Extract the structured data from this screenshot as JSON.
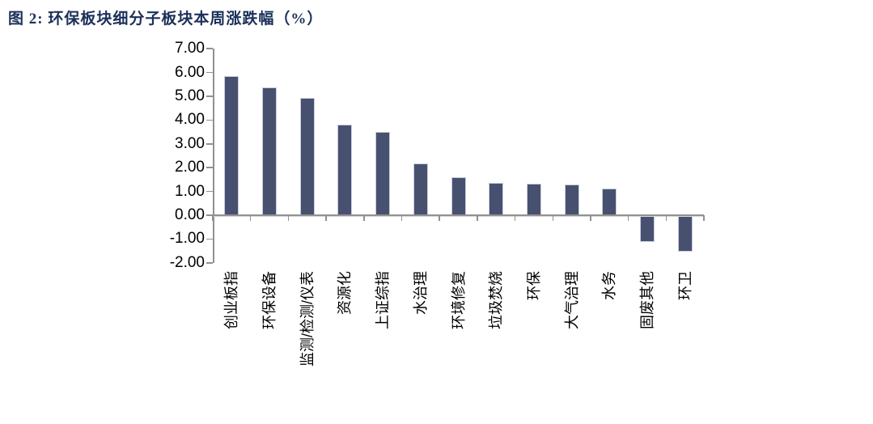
{
  "figure": {
    "title": "图 2: 环保板块细分子板块本周涨跌幅（%）"
  },
  "chart_data": {
    "type": "bar",
    "title": "环保板块细分子板块本周涨跌幅（%）",
    "categories": [
      "创业板指",
      "环保设备",
      "监测/检测/仪表",
      "资源化",
      "上证综指",
      "水治理",
      "环境修复",
      "垃圾焚烧",
      "环保",
      "大气治理",
      "水务",
      "固废其他",
      "环卫"
    ],
    "values": [
      5.85,
      5.38,
      4.93,
      3.81,
      3.52,
      2.16,
      1.6,
      1.37,
      1.34,
      1.3,
      1.13,
      -1.1,
      -1.51
    ],
    "xlabel": "",
    "ylabel": "",
    "ylim": [
      -2,
      7
    ],
    "ytick_step": 1,
    "ytick_labels": [
      "7.00",
      "6.00",
      "5.00",
      "4.00",
      "3.00",
      "2.00",
      "1.00",
      "0.00",
      "-1.00",
      "-2.00"
    ],
    "grid": false,
    "legend": null,
    "bar_color": "#47516F",
    "bar_border_color": "#C9CEDF",
    "axis_color": "#919191",
    "axis_shadow_color": "#D9D9D9",
    "text_color": "#000000",
    "title_color": "#1B3059"
  }
}
